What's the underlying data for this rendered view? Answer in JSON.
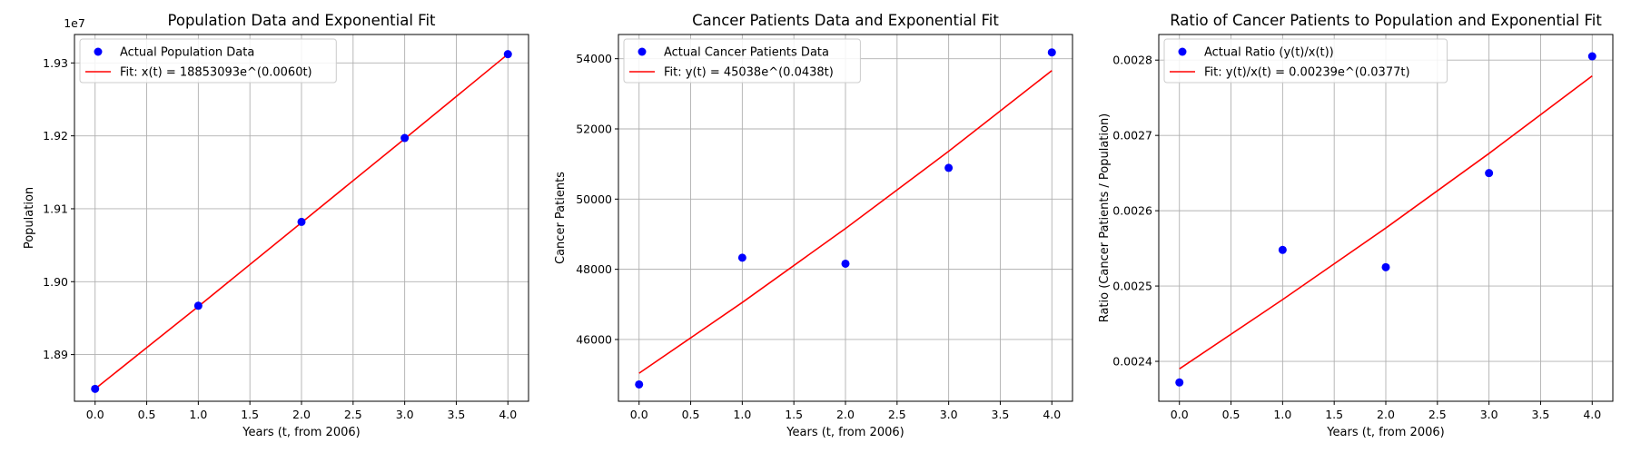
{
  "colors": {
    "scatter": "#0000ff",
    "fit": "#ff0000",
    "grid": "#b0b0b0"
  },
  "chart_data": [
    {
      "type": "scatter",
      "title": "Population Data and Exponential Fit",
      "xlabel": "Years (t, from 2006)",
      "ylabel": "Population",
      "offset_label": "1e7",
      "xlim": [
        -0.2,
        4.2
      ],
      "ylim": [
        1.8836,
        1.9339
      ],
      "xticks": [
        0.0,
        0.5,
        1.0,
        1.5,
        2.0,
        2.5,
        3.0,
        3.5,
        4.0
      ],
      "xtick_labels": [
        "0.0",
        "0.5",
        "1.0",
        "1.5",
        "2.0",
        "2.5",
        "3.0",
        "3.5",
        "4.0"
      ],
      "yticks": [
        1.89,
        1.9,
        1.91,
        1.92,
        1.93
      ],
      "ytick_labels": [
        "1.89",
        "1.90",
        "1.91",
        "1.92",
        "1.93"
      ],
      "grid": true,
      "legend_position": "top-left",
      "series": [
        {
          "name": "Actual Population Data",
          "kind": "scatter",
          "x": [
            0,
            1,
            2,
            3,
            4
          ],
          "y": [
            1.8853,
            1.8967,
            1.9082,
            1.9197,
            1.9312
          ]
        },
        {
          "name": "Fit: x(t) = 18853093e^(0.0060t)",
          "kind": "line",
          "x": [
            0,
            1,
            2,
            3,
            4
          ],
          "y": [
            1.8853,
            1.8966,
            1.9081,
            1.9196,
            1.9312
          ]
        }
      ]
    },
    {
      "type": "scatter",
      "title": "Cancer Patients Data and Exponential Fit",
      "xlabel": "Years (t, from 2006)",
      "ylabel": "Cancer Patients",
      "offset_label": "",
      "xlim": [
        -0.2,
        4.2
      ],
      "ylim": [
        44240,
        54690
      ],
      "xticks": [
        0.0,
        0.5,
        1.0,
        1.5,
        2.0,
        2.5,
        3.0,
        3.5,
        4.0
      ],
      "xtick_labels": [
        "0.0",
        "0.5",
        "1.0",
        "1.5",
        "2.0",
        "2.5",
        "3.0",
        "3.5",
        "4.0"
      ],
      "yticks": [
        46000,
        48000,
        50000,
        52000,
        54000
      ],
      "ytick_labels": [
        "46000",
        "48000",
        "50000",
        "52000",
        "54000"
      ],
      "grid": true,
      "legend_position": "top-left",
      "series": [
        {
          "name": "Actual Cancer Patients Data",
          "kind": "scatter",
          "x": [
            0,
            1,
            2,
            3,
            4
          ],
          "y": [
            44720,
            48330,
            48160,
            50890,
            54180
          ]
        },
        {
          "name": "Fit: y(t) = 45038e^(0.0438t)",
          "kind": "line",
          "x": [
            0,
            1,
            2,
            3,
            4
          ],
          "y": [
            45038,
            47055,
            49162,
            51362,
            53662
          ]
        }
      ]
    },
    {
      "type": "scatter",
      "title": "Ratio of Cancer Patients to Population and Exponential Fit",
      "xlabel": "Years (t, from 2006)",
      "ylabel": "Ratio (Cancer Patients / Population)",
      "offset_label": "",
      "xlim": [
        -0.2,
        4.2
      ],
      "ylim": [
        0.002347,
        0.002834
      ],
      "xticks": [
        0.0,
        0.5,
        1.0,
        1.5,
        2.0,
        2.5,
        3.0,
        3.5,
        4.0
      ],
      "xtick_labels": [
        "0.0",
        "0.5",
        "1.0",
        "1.5",
        "2.0",
        "2.5",
        "3.0",
        "3.5",
        "4.0"
      ],
      "yticks": [
        0.0024,
        0.0025,
        0.0026,
        0.0027,
        0.0028
      ],
      "ytick_labels": [
        "0.0024",
        "0.0025",
        "0.0026",
        "0.0027",
        "0.0028"
      ],
      "grid": true,
      "legend_position": "top-left",
      "series": [
        {
          "name": "Actual Ratio (y(t)/x(t))",
          "kind": "scatter",
          "x": [
            0,
            1,
            2,
            3,
            4
          ],
          "y": [
            0.002372,
            0.002548,
            0.002525,
            0.00265,
            0.002805
          ]
        },
        {
          "name": "Fit: y(t)/x(t) = 0.00239e^(0.0377t)",
          "kind": "line",
          "x": [
            0,
            1,
            2,
            3,
            4
          ],
          "y": [
            0.00239,
            0.002482,
            0.002577,
            0.002676,
            0.002779
          ]
        }
      ]
    }
  ]
}
